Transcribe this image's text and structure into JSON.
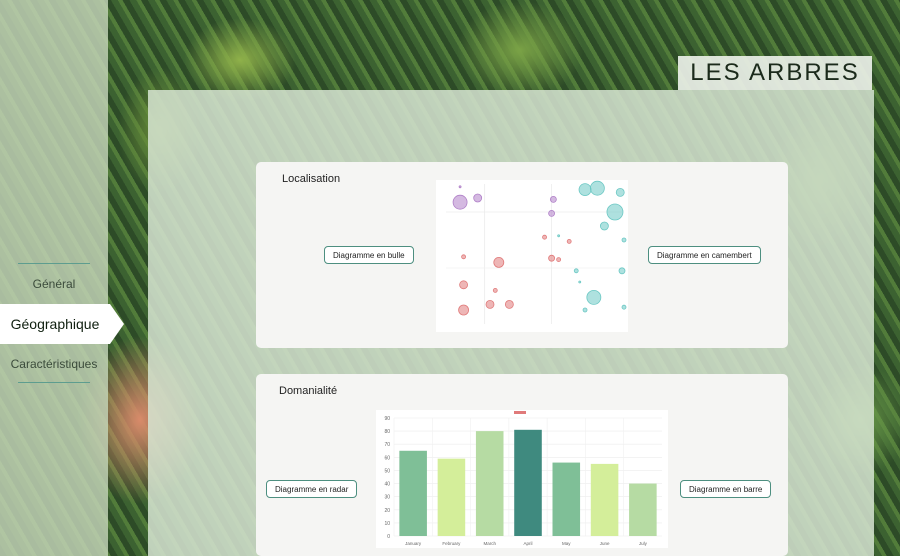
{
  "app": {
    "title": "LES ARBRES"
  },
  "nav": {
    "items": [
      {
        "label": "Général",
        "active": false
      },
      {
        "label": "Géographique",
        "active": true
      },
      {
        "label": "Caractéristiques",
        "active": false
      }
    ]
  },
  "cards": {
    "localisation": {
      "title": "Localisation",
      "left_button": "Diagramme en bulle",
      "right_button": "Diagramme en camembert"
    },
    "domanialite": {
      "title": "Domanialité",
      "left_button": "Diagramme en radar",
      "right_button": "Diagramme en barre"
    }
  },
  "chart_data": [
    {
      "type": "scatter",
      "title": "",
      "xlim": [
        0,
        100
      ],
      "ylim": [
        0,
        100
      ],
      "series": [
        {
          "color": "#e07a7a",
          "points": [
            {
              "x": 10,
              "y": 10,
              "r": 5
            },
            {
              "x": 10,
              "y": 28,
              "r": 4
            },
            {
              "x": 10,
              "y": 48,
              "r": 2
            },
            {
              "x": 25,
              "y": 14,
              "r": 4
            },
            {
              "x": 36,
              "y": 14,
              "r": 4
            },
            {
              "x": 30,
              "y": 44,
              "r": 5
            },
            {
              "x": 28,
              "y": 24,
              "r": 2
            },
            {
              "x": 56,
              "y": 62,
              "r": 2
            },
            {
              "x": 60,
              "y": 47,
              "r": 3
            },
            {
              "x": 64,
              "y": 46,
              "r": 2
            },
            {
              "x": 70,
              "y": 59,
              "r": 2
            }
          ]
        },
        {
          "color": "#b080c8",
          "points": [
            {
              "x": 8,
              "y": 87,
              "r": 7
            },
            {
              "x": 18,
              "y": 90,
              "r": 4
            },
            {
              "x": 61,
              "y": 89,
              "r": 3
            },
            {
              "x": 60,
              "y": 79,
              "r": 3
            },
            {
              "x": 8,
              "y": 98,
              "r": 1
            }
          ]
        },
        {
          "color": "#6cc8c4",
          "points": [
            {
              "x": 79,
              "y": 96,
              "r": 6
            },
            {
              "x": 86,
              "y": 97,
              "r": 7
            },
            {
              "x": 99,
              "y": 94,
              "r": 4
            },
            {
              "x": 90,
              "y": 70,
              "r": 4
            },
            {
              "x": 96,
              "y": 80,
              "r": 8
            },
            {
              "x": 84,
              "y": 19,
              "r": 7
            },
            {
              "x": 79,
              "y": 10,
              "r": 2
            },
            {
              "x": 100,
              "y": 38,
              "r": 3
            },
            {
              "x": 102,
              "y": 12,
              "r": 2
            },
            {
              "x": 64,
              "y": 63,
              "r": 1
            },
            {
              "x": 74,
              "y": 38,
              "r": 2
            },
            {
              "x": 103,
              "y": 60,
              "r": 2
            },
            {
              "x": 76,
              "y": 30,
              "r": 1
            }
          ]
        }
      ]
    },
    {
      "type": "bar",
      "title": "",
      "categories": [
        "January",
        "February",
        "March",
        "April",
        "May",
        "June",
        "July"
      ],
      "values": [
        65,
        59,
        80,
        81,
        56,
        55,
        40
      ],
      "colors": [
        "#7fbf97",
        "#d4ee9a",
        "#b6dba3",
        "#3f8a7f",
        "#7fbf97",
        "#d4ee9a",
        "#b6dba3"
      ],
      "ylim": [
        0,
        90
      ],
      "yticks": [
        0,
        10,
        20,
        30,
        40,
        50,
        60,
        70,
        80,
        90
      ]
    }
  ]
}
